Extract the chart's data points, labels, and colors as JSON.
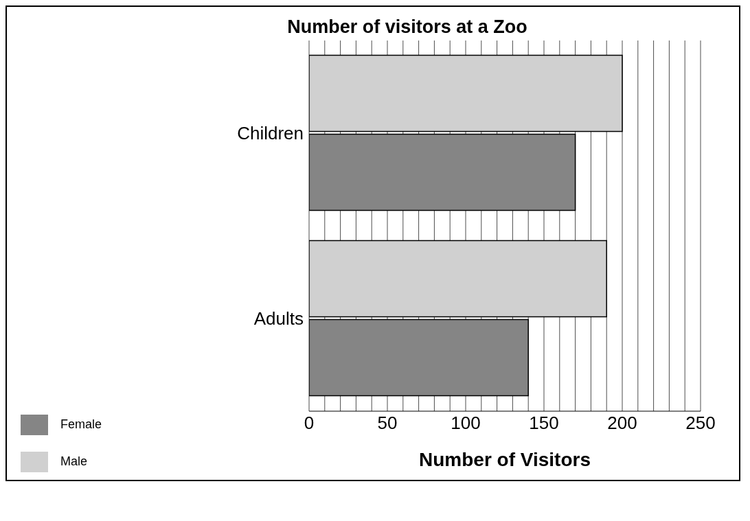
{
  "chart_data": {
    "type": "bar",
    "orientation": "horizontal",
    "title": "Number of visitors at a Zoo",
    "xlabel": "Number of Visitors",
    "categories": [
      "Children",
      "Adults"
    ],
    "series": [
      {
        "name": "Male",
        "color": "#d0d0d0",
        "values": [
          200,
          190
        ]
      },
      {
        "name": "Female",
        "color": "#858585",
        "values": [
          170,
          140
        ]
      }
    ],
    "xlim": [
      0,
      250
    ],
    "xticks": [
      0,
      {
        "value": 10,
        "label": null
      },
      {
        "value": 20,
        "label": null
      },
      {
        "value": 30,
        "label": null
      },
      {
        "value": 40,
        "label": null
      },
      50,
      {
        "value": 60,
        "label": null
      },
      {
        "value": 70,
        "label": null
      },
      {
        "value": 80,
        "label": null
      },
      {
        "value": 90,
        "label": null
      },
      100,
      {
        "value": 110,
        "label": null
      },
      {
        "value": 120,
        "label": null
      },
      {
        "value": 130,
        "label": null
      },
      {
        "value": 140,
        "label": null
      },
      150,
      {
        "value": 160,
        "label": null
      },
      {
        "value": 170,
        "label": null
      },
      {
        "value": 180,
        "label": null
      },
      {
        "value": 190,
        "label": null
      },
      200,
      {
        "value": 210,
        "label": null
      },
      {
        "value": 220,
        "label": null
      },
      {
        "value": 230,
        "label": null
      },
      {
        "value": 240,
        "label": null
      },
      250
    ],
    "grid": "x",
    "legend": "bottom left"
  }
}
